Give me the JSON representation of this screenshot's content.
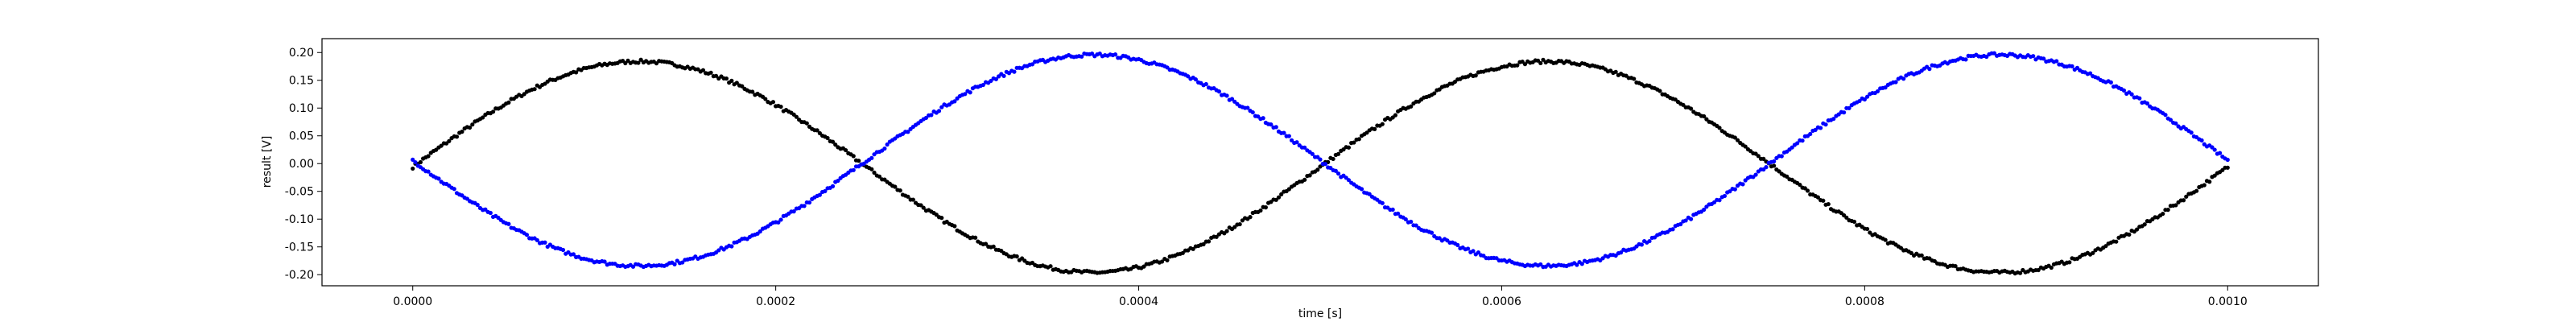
{
  "chart_data": {
    "type": "scatter",
    "xlabel": "time [s]",
    "ylabel": "result [V]",
    "xlim": [
      -5e-05,
      0.00105
    ],
    "ylim": [
      -0.22,
      0.225
    ],
    "x_ticks": [
      "0.0000",
      "0.0002",
      "0.0004",
      "0.0006",
      "0.0008",
      "0.0010"
    ],
    "y_ticks": [
      "0.20",
      "0.15",
      "0.10",
      "0.05",
      "0.00",
      "-0.05",
      "-0.10",
      "-0.15",
      "-0.20"
    ],
    "grid": false,
    "x_range": [
      0,
      0.001
    ],
    "n_points": 700,
    "series": [
      {
        "color": "#000000",
        "marker": "dot",
        "frequency_hz": 2000,
        "amplitude": 0.19,
        "offset": -0.006,
        "phase": "sine"
      },
      {
        "color": "#0000ff",
        "marker": "dot",
        "frequency_hz": 2000,
        "amplitude": 0.19,
        "offset": 0.006,
        "phase": "negative-sine"
      }
    ]
  }
}
